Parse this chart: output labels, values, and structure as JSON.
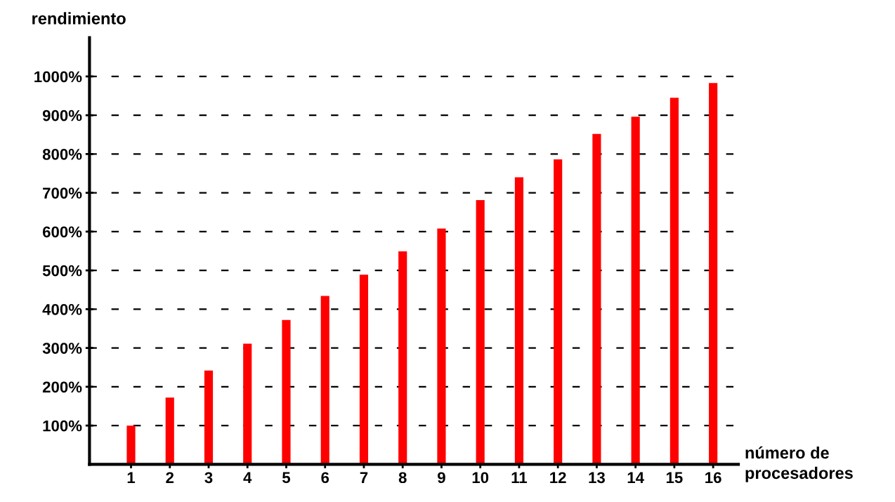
{
  "chart_data": {
    "type": "bar",
    "xlabel": "número de\nprocesadores",
    "ylabel": "rendimiento",
    "categories": [
      "1",
      "2",
      "3",
      "4",
      "5",
      "6",
      "7",
      "8",
      "9",
      "10",
      "11",
      "12",
      "13",
      "14",
      "15",
      "16"
    ],
    "values": [
      100,
      172,
      242,
      311,
      372,
      434,
      489,
      549,
      608,
      681,
      740,
      786,
      852,
      896,
      945,
      983
    ],
    "color": "#ff0000",
    "ylim": [
      0,
      1100
    ],
    "yticks": [
      {
        "value": 100,
        "label": "100%"
      },
      {
        "value": 200,
        "label": "200%"
      },
      {
        "value": 300,
        "label": "300%"
      },
      {
        "value": 400,
        "label": "400%"
      },
      {
        "value": 500,
        "label": "500%"
      },
      {
        "value": 600,
        "label": "600%"
      },
      {
        "value": 700,
        "label": "700%"
      },
      {
        "value": 800,
        "label": "800%"
      },
      {
        "value": 900,
        "label": "900%"
      },
      {
        "value": 1000,
        "label": "1000%"
      }
    ],
    "grid": "y",
    "line_style": "dashed"
  }
}
